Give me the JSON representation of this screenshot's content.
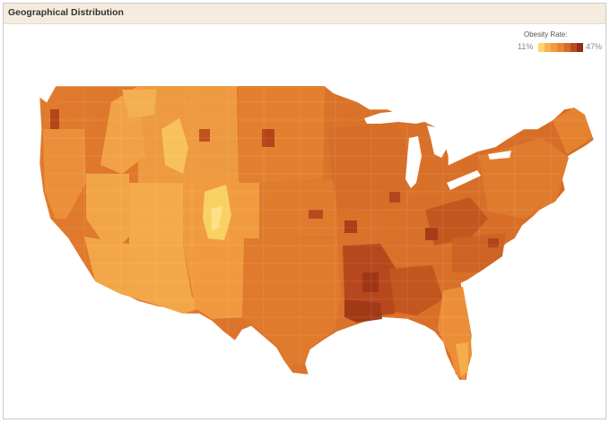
{
  "header": {
    "title": "Geographical Distribution"
  },
  "legend": {
    "title": "Obesity Rate:",
    "min_label": "11%",
    "max_label": "47%",
    "colors": [
      "#fbd56b",
      "#f6b34f",
      "#f19a3f",
      "#e88433",
      "#d56a27",
      "#b9491d",
      "#8e2e14"
    ]
  },
  "map": {
    "region": "contiguous-united-states",
    "unit": "county",
    "measure": "obesity rate"
  }
}
